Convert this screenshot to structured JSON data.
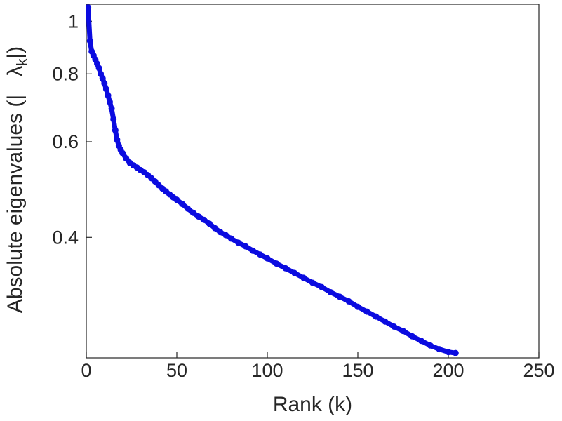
{
  "figure": {
    "background": "#ffffff"
  },
  "chart_data": {
    "type": "line",
    "title": "",
    "xlabel": "Rank (k)",
    "ylabel": "Absolute eigenvalues (|λ_k|)",
    "ylabel_parts": {
      "prefix": "Absolute eigenvalues (|",
      "lambda": "λ",
      "subscript": "k",
      "suffix": "|)"
    },
    "x_ticks": [
      0,
      50,
      100,
      150,
      200,
      250
    ],
    "y_ticks": [
      0.4,
      0.6,
      0.8,
      1
    ],
    "xlim": [
      0,
      250
    ],
    "ylim": [
      0.24,
      1.075
    ],
    "y_scale": "log",
    "grid": false,
    "legend": null,
    "line_color": "#0b0be0",
    "axis_color": "#262626",
    "tick_label_color": "#262626",
    "line_width": 7,
    "marker_radius": 4.5,
    "points": [
      [
        1,
        1.06
      ],
      [
        2,
        0.92
      ],
      [
        3,
        0.88
      ],
      [
        4,
        0.865
      ],
      [
        5,
        0.85
      ],
      [
        6,
        0.835
      ],
      [
        7,
        0.82
      ],
      [
        8,
        0.8
      ],
      [
        9,
        0.785
      ],
      [
        10,
        0.768
      ],
      [
        11,
        0.75
      ],
      [
        12,
        0.73
      ],
      [
        13,
        0.71
      ],
      [
        14,
        0.69
      ],
      [
        15,
        0.66
      ],
      [
        16,
        0.63
      ],
      [
        17,
        0.605
      ],
      [
        18,
        0.59
      ],
      [
        19,
        0.58
      ],
      [
        20,
        0.572
      ],
      [
        22,
        0.559
      ],
      [
        24,
        0.549
      ],
      [
        26,
        0.543
      ],
      [
        28,
        0.538
      ],
      [
        30,
        0.532
      ],
      [
        32,
        0.527
      ],
      [
        34,
        0.521
      ],
      [
        36,
        0.514
      ],
      [
        38,
        0.507
      ],
      [
        40,
        0.499
      ],
      [
        42,
        0.492
      ],
      [
        44,
        0.486
      ],
      [
        46,
        0.48
      ],
      [
        48,
        0.474
      ],
      [
        50,
        0.469
      ],
      [
        53,
        0.461
      ],
      [
        56,
        0.452
      ],
      [
        59,
        0.444
      ],
      [
        62,
        0.437
      ],
      [
        65,
        0.431
      ],
      [
        68,
        0.424
      ],
      [
        71,
        0.416
      ],
      [
        74,
        0.409
      ],
      [
        77,
        0.404
      ],
      [
        80,
        0.398
      ],
      [
        84,
        0.391
      ],
      [
        88,
        0.385
      ],
      [
        92,
        0.378
      ],
      [
        96,
        0.372
      ],
      [
        100,
        0.366
      ],
      [
        105,
        0.358
      ],
      [
        110,
        0.351
      ],
      [
        115,
        0.344
      ],
      [
        120,
        0.337
      ],
      [
        125,
        0.33
      ],
      [
        130,
        0.324
      ],
      [
        135,
        0.317
      ],
      [
        140,
        0.311
      ],
      [
        145,
        0.305
      ],
      [
        150,
        0.298
      ],
      [
        155,
        0.292
      ],
      [
        160,
        0.286
      ],
      [
        165,
        0.28
      ],
      [
        170,
        0.274
      ],
      [
        175,
        0.269
      ],
      [
        180,
        0.263
      ],
      [
        185,
        0.258
      ],
      [
        190,
        0.253
      ],
      [
        195,
        0.249
      ],
      [
        200,
        0.246
      ],
      [
        204,
        0.245
      ]
    ]
  }
}
